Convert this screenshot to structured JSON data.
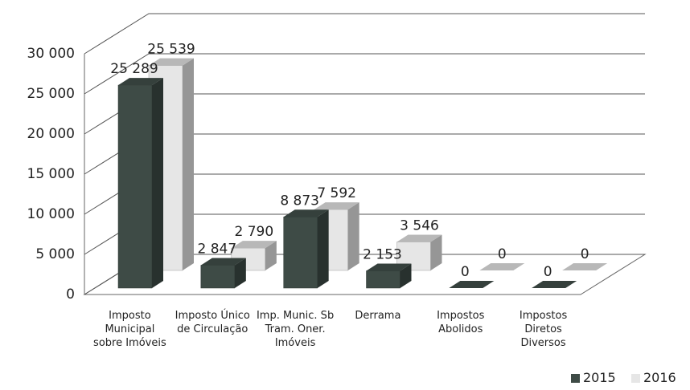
{
  "chart_data": {
    "type": "bar3d",
    "categories": [
      "Imposto Municipal sobre Imóveis",
      "Imposto Único de Circulação",
      "Imp. Munic. Sb Tram. Oner. Imóveis",
      "Derrama",
      "Impostos Abolidos",
      "Impostos Diretos Diversos"
    ],
    "series": [
      {
        "name": "2015",
        "color": "#3e4b46",
        "values": [
          25289,
          2847,
          8873,
          2153,
          0,
          0
        ],
        "value_labels": [
          "25 289",
          "2 847",
          "8 873",
          "2 153",
          "0",
          "0"
        ]
      },
      {
        "name": "2016",
        "color": "#e6e6e6",
        "values": [
          25539,
          2790,
          7592,
          3546,
          0,
          0
        ],
        "value_labels": [
          "25 539",
          "2 790",
          "7 592",
          "3 546",
          "0",
          "0"
        ]
      }
    ],
    "ylim": [
      0,
      30000
    ],
    "yticks": [
      0,
      {
        "value": 5000,
        "label": "5 000"
      },
      {
        "value": 10000,
        "label": "10 000"
      },
      {
        "value": 15000,
        "label": "15 000"
      },
      {
        "value": 20000,
        "label": "20 000"
      },
      {
        "value": 25000,
        "label": "25 000"
      },
      {
        "value": 30000,
        "label": "30 000"
      }
    ],
    "grid": true,
    "legend": "bottom-right"
  }
}
